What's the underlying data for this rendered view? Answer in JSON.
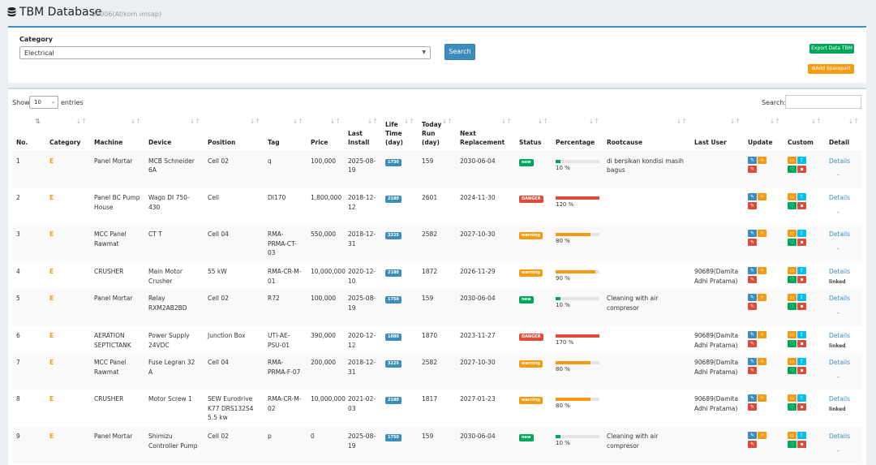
{
  "header": {
    "title": "TBM Database",
    "subtitle": "90006(Atikom imsap)",
    "icon": "database-icon"
  },
  "filter": {
    "category_label": "Category",
    "category_value": "Electrical",
    "search_button": "Search",
    "export_button": "Export Data TBM",
    "add_button": "Add Sparepart"
  },
  "table_controls": {
    "show_label": "Show",
    "entries_value": "10",
    "entries_label": "entries",
    "search_label": "Search:"
  },
  "columns": [
    "No.",
    "Category",
    "Machine",
    "Device",
    "Position",
    "Tag",
    "Price",
    "Last Install",
    "Life Time (day)",
    "Today Run (day)",
    "Next Replacement",
    "Status",
    "Percentage",
    "Rootcause",
    "Last User",
    "Update",
    "Custom",
    "Detail"
  ],
  "rows": [
    {
      "no": "1",
      "category": "E",
      "machine": "Panel Mortar",
      "device": "MCB Schneider 6A",
      "position": "Cell 02",
      "tag": "q",
      "price": "100,000",
      "last_install": "2025-08-19",
      "life_time": "1750",
      "today_run": "159",
      "next_replacement": "2030-06-04",
      "status": "new",
      "status_color": "green",
      "percent": 10,
      "percent_label": "10 %",
      "rootcause": "di bersikan kondisi masih bagus",
      "last_user": "",
      "detail": "Details",
      "detail_note": "-"
    },
    {
      "no": "2",
      "category": "E",
      "machine": "Panel BC Pump House",
      "device": "Wago DI 750-430",
      "position": "Cell",
      "tag": "DI170",
      "price": "1,800,000",
      "last_install": "2018-12-12",
      "life_time": "2180",
      "today_run": "2601",
      "next_replacement": "2024-11-30",
      "status": "DANGER",
      "status_color": "red",
      "percent": 120,
      "percent_label": "120 %",
      "rootcause": "",
      "last_user": "",
      "detail": "Details",
      "detail_note": "-"
    },
    {
      "no": "3",
      "category": "E",
      "machine": "MCC Panel Rawmat",
      "device": "CT T",
      "position": "Cell 04",
      "tag": "RMA-PRMA-CT-03",
      "price": "550,000",
      "last_install": "2018-12-31",
      "life_time": "3225",
      "today_run": "2582",
      "next_replacement": "2027-10-30",
      "status": "warning",
      "status_color": "orange",
      "percent": 80,
      "percent_label": "80 %",
      "rootcause": "",
      "last_user": "",
      "detail": "Details",
      "detail_note": "-"
    },
    {
      "no": "4",
      "category": "E",
      "machine": "CRUSHER",
      "device": "Main Motor Crusher",
      "position": "55 kW",
      "tag": "RMA-CR-M-01",
      "price": "10,000,000",
      "last_install": "2020-12-10",
      "life_time": "2180",
      "today_run": "1872",
      "next_replacement": "2026-11-29",
      "status": "warning",
      "status_color": "orange",
      "percent": 90,
      "percent_label": "90 %",
      "rootcause": "",
      "last_user": "90689(Damita Adhi Pratama)",
      "detail": "Details",
      "detail_note": "linked"
    },
    {
      "no": "5",
      "category": "E",
      "machine": "Panel Mortar",
      "device": "Relay RXM2AB2BD",
      "position": "Cell 02",
      "tag": "R72",
      "price": "100,000",
      "last_install": "2025-08-19",
      "life_time": "1750",
      "today_run": "159",
      "next_replacement": "2030-06-04",
      "status": "new",
      "status_color": "green",
      "percent": 10,
      "percent_label": "10 %",
      "rootcause": "Cleaning with air compresor",
      "last_user": "",
      "detail": "Details",
      "detail_note": "-"
    },
    {
      "no": "6",
      "category": "E",
      "machine": "AERATION SEPTICTANK",
      "device": "Power Supply 24VDC",
      "position": "Junction Box",
      "tag": "UTI-AE-PSU-01",
      "price": "390,000",
      "last_install": "2020-12-12",
      "life_time": "1080",
      "today_run": "1870",
      "next_replacement": "2023-11-27",
      "status": "DANGER",
      "status_color": "red",
      "percent": 170,
      "percent_label": "170 %",
      "rootcause": "",
      "last_user": "90689(Damita Adhi Pratama)",
      "detail": "Details",
      "detail_note": "linked"
    },
    {
      "no": "7",
      "category": "E",
      "machine": "MCC Panel Rawmat",
      "device": "Fuse Legran 32 A",
      "position": "Cell 04",
      "tag": "RMA-PRMA-F-07",
      "price": "200,000",
      "last_install": "2018-12-31",
      "life_time": "3225",
      "today_run": "2582",
      "next_replacement": "2027-10-30",
      "status": "warning",
      "status_color": "orange",
      "percent": 80,
      "percent_label": "80 %",
      "rootcause": "",
      "last_user": "90689(Damita Adhi Pratama)",
      "detail": "Details",
      "detail_note": "-"
    },
    {
      "no": "8",
      "category": "E",
      "machine": "CRUSHER",
      "device": "Motor Screw 1",
      "position": "SEW Eurodrive K77 DRS132S4 5.5 kw",
      "tag": "RMA-CR-M-02",
      "price": "10,000,000",
      "last_install": "2021-02-03",
      "life_time": "2180",
      "today_run": "1817",
      "next_replacement": "2027-01-23",
      "status": "warning",
      "status_color": "orange",
      "percent": 80,
      "percent_label": "80 %",
      "rootcause": "",
      "last_user": "90689(Damita Adhi Pratama)",
      "detail": "Details",
      "detail_note": "linked"
    },
    {
      "no": "9",
      "category": "E",
      "machine": "Panel Mortar",
      "device": "Shimizu Controller Pump",
      "position": "Cell 02",
      "tag": "p",
      "price": "0",
      "last_install": "2025-08-19",
      "life_time": "1750",
      "today_run": "159",
      "next_replacement": "2030-06-04",
      "status": "new",
      "status_color": "green",
      "percent": 10,
      "percent_label": "10 %",
      "rootcause": "Cleaning with air compresor",
      "last_user": "",
      "detail": "Details",
      "detail_note": "-"
    }
  ]
}
